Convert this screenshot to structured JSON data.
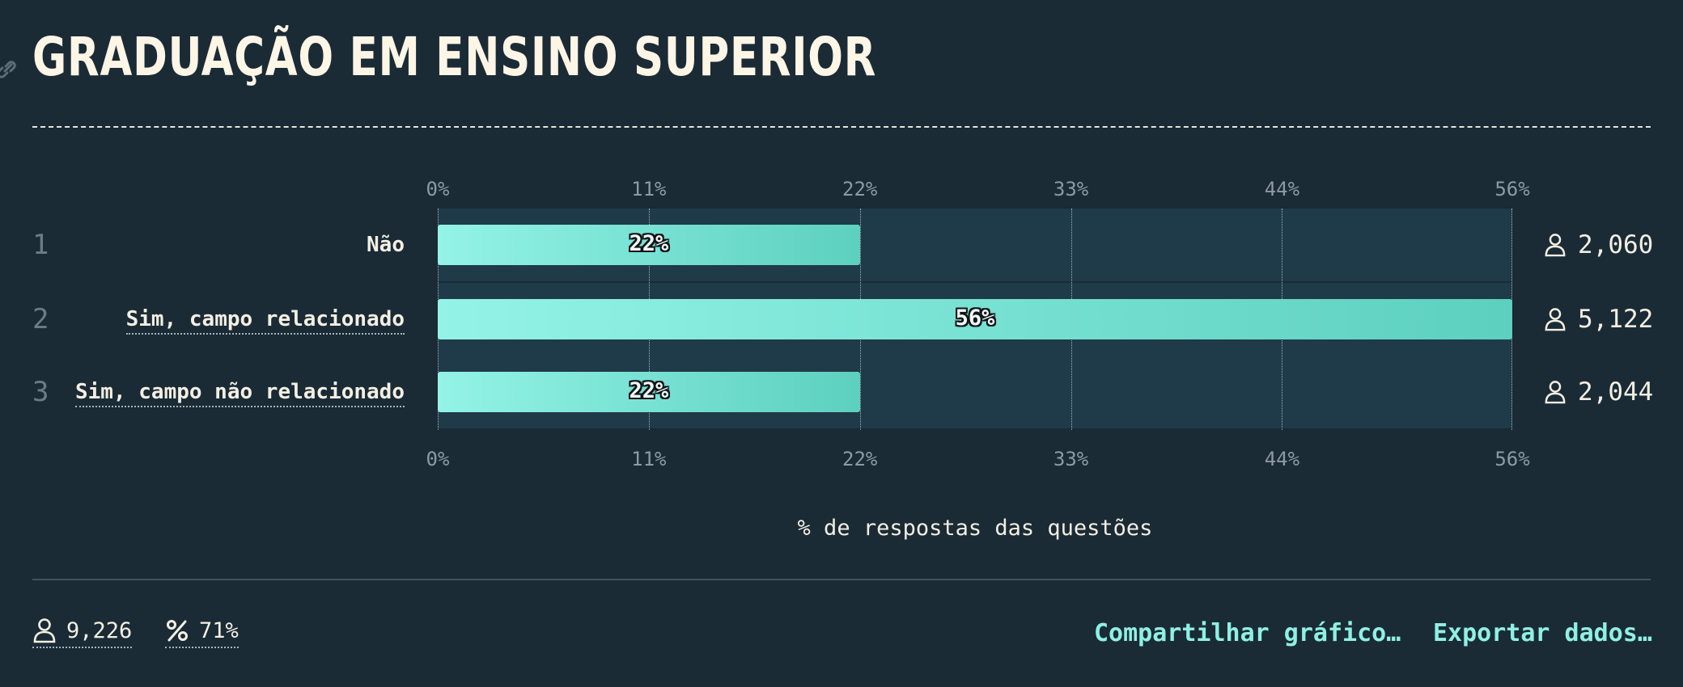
{
  "header": {
    "title": "GRADUAÇÃO EM ENSINO SUPERIOR"
  },
  "chart_data": {
    "type": "bar",
    "orientation": "horizontal",
    "categories": [
      "Não",
      "Sim, campo relacionado",
      "Sim, campo não relacionado"
    ],
    "series": [
      {
        "values": [
          22,
          56,
          22
        ]
      }
    ],
    "row_numbers": [
      "1",
      "2",
      "3"
    ],
    "data_labels": [
      "22%",
      "56%",
      "22%"
    ],
    "counts": [
      "2,060",
      "5,122",
      "2,044"
    ],
    "xlim": [
      0,
      56
    ],
    "xticks": [
      0,
      11,
      22,
      33,
      44,
      56
    ],
    "xtick_labels": [
      "0%",
      "11%",
      "22%",
      "33%",
      "44%",
      "56%"
    ],
    "xlabel": "% de respostas das questões",
    "grid": true,
    "accent_color": "#7ee4d5",
    "track_color": "#1f3a49"
  },
  "footer": {
    "respondents": "9,226",
    "response_rate": "71%",
    "share_label": "Compartilhar gráfico…",
    "export_label": "Exportar dados…"
  }
}
